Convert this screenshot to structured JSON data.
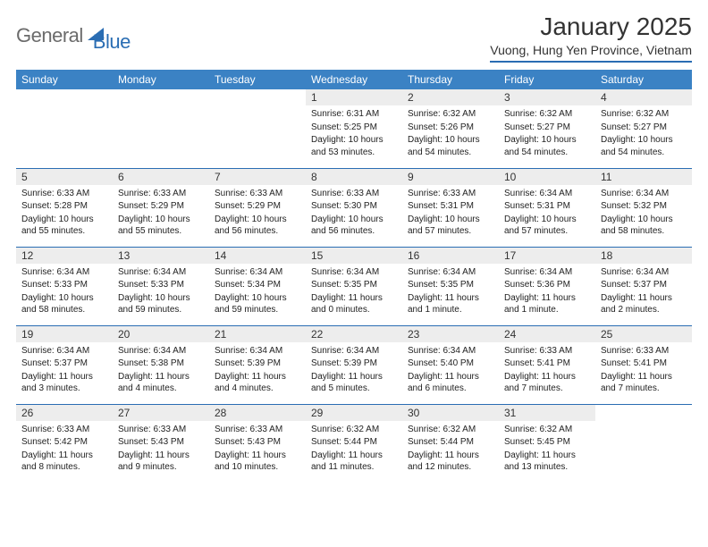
{
  "logo": {
    "part1": "General",
    "part2": "Blue"
  },
  "title": "January 2025",
  "location": "Vuong, Hung Yen Province, Vietnam",
  "colors": {
    "header_bg": "#3b82c4",
    "header_text": "#ffffff",
    "accent": "#2a6db3",
    "daynum_bg": "#ededed",
    "text": "#222222",
    "logo_gray": "#6b6b6b",
    "page_bg": "#ffffff"
  },
  "fonts": {
    "title_size": 28,
    "location_size": 14,
    "weekday_size": 12,
    "daynum_size": 12,
    "body_size": 10,
    "logo_size": 22
  },
  "weekdays": [
    "Sunday",
    "Monday",
    "Tuesday",
    "Wednesday",
    "Thursday",
    "Friday",
    "Saturday"
  ],
  "weeks": [
    [
      {
        "blank": true
      },
      {
        "blank": true
      },
      {
        "blank": true
      },
      {
        "n": "1",
        "sunrise": "6:31 AM",
        "sunset": "5:25 PM",
        "daylight": "10 hours and 53 minutes."
      },
      {
        "n": "2",
        "sunrise": "6:32 AM",
        "sunset": "5:26 PM",
        "daylight": "10 hours and 54 minutes."
      },
      {
        "n": "3",
        "sunrise": "6:32 AM",
        "sunset": "5:27 PM",
        "daylight": "10 hours and 54 minutes."
      },
      {
        "n": "4",
        "sunrise": "6:32 AM",
        "sunset": "5:27 PM",
        "daylight": "10 hours and 54 minutes."
      }
    ],
    [
      {
        "n": "5",
        "sunrise": "6:33 AM",
        "sunset": "5:28 PM",
        "daylight": "10 hours and 55 minutes."
      },
      {
        "n": "6",
        "sunrise": "6:33 AM",
        "sunset": "5:29 PM",
        "daylight": "10 hours and 55 minutes."
      },
      {
        "n": "7",
        "sunrise": "6:33 AM",
        "sunset": "5:29 PM",
        "daylight": "10 hours and 56 minutes."
      },
      {
        "n": "8",
        "sunrise": "6:33 AM",
        "sunset": "5:30 PM",
        "daylight": "10 hours and 56 minutes."
      },
      {
        "n": "9",
        "sunrise": "6:33 AM",
        "sunset": "5:31 PM",
        "daylight": "10 hours and 57 minutes."
      },
      {
        "n": "10",
        "sunrise": "6:34 AM",
        "sunset": "5:31 PM",
        "daylight": "10 hours and 57 minutes."
      },
      {
        "n": "11",
        "sunrise": "6:34 AM",
        "sunset": "5:32 PM",
        "daylight": "10 hours and 58 minutes."
      }
    ],
    [
      {
        "n": "12",
        "sunrise": "6:34 AM",
        "sunset": "5:33 PM",
        "daylight": "10 hours and 58 minutes."
      },
      {
        "n": "13",
        "sunrise": "6:34 AM",
        "sunset": "5:33 PM",
        "daylight": "10 hours and 59 minutes."
      },
      {
        "n": "14",
        "sunrise": "6:34 AM",
        "sunset": "5:34 PM",
        "daylight": "10 hours and 59 minutes."
      },
      {
        "n": "15",
        "sunrise": "6:34 AM",
        "sunset": "5:35 PM",
        "daylight": "11 hours and 0 minutes."
      },
      {
        "n": "16",
        "sunrise": "6:34 AM",
        "sunset": "5:35 PM",
        "daylight": "11 hours and 1 minute."
      },
      {
        "n": "17",
        "sunrise": "6:34 AM",
        "sunset": "5:36 PM",
        "daylight": "11 hours and 1 minute."
      },
      {
        "n": "18",
        "sunrise": "6:34 AM",
        "sunset": "5:37 PM",
        "daylight": "11 hours and 2 minutes."
      }
    ],
    [
      {
        "n": "19",
        "sunrise": "6:34 AM",
        "sunset": "5:37 PM",
        "daylight": "11 hours and 3 minutes."
      },
      {
        "n": "20",
        "sunrise": "6:34 AM",
        "sunset": "5:38 PM",
        "daylight": "11 hours and 4 minutes."
      },
      {
        "n": "21",
        "sunrise": "6:34 AM",
        "sunset": "5:39 PM",
        "daylight": "11 hours and 4 minutes."
      },
      {
        "n": "22",
        "sunrise": "6:34 AM",
        "sunset": "5:39 PM",
        "daylight": "11 hours and 5 minutes."
      },
      {
        "n": "23",
        "sunrise": "6:34 AM",
        "sunset": "5:40 PM",
        "daylight": "11 hours and 6 minutes."
      },
      {
        "n": "24",
        "sunrise": "6:33 AM",
        "sunset": "5:41 PM",
        "daylight": "11 hours and 7 minutes."
      },
      {
        "n": "25",
        "sunrise": "6:33 AM",
        "sunset": "5:41 PM",
        "daylight": "11 hours and 7 minutes."
      }
    ],
    [
      {
        "n": "26",
        "sunrise": "6:33 AM",
        "sunset": "5:42 PM",
        "daylight": "11 hours and 8 minutes."
      },
      {
        "n": "27",
        "sunrise": "6:33 AM",
        "sunset": "5:43 PM",
        "daylight": "11 hours and 9 minutes."
      },
      {
        "n": "28",
        "sunrise": "6:33 AM",
        "sunset": "5:43 PM",
        "daylight": "11 hours and 10 minutes."
      },
      {
        "n": "29",
        "sunrise": "6:32 AM",
        "sunset": "5:44 PM",
        "daylight": "11 hours and 11 minutes."
      },
      {
        "n": "30",
        "sunrise": "6:32 AM",
        "sunset": "5:44 PM",
        "daylight": "11 hours and 12 minutes."
      },
      {
        "n": "31",
        "sunrise": "6:32 AM",
        "sunset": "5:45 PM",
        "daylight": "11 hours and 13 minutes."
      },
      {
        "blank": true
      }
    ]
  ],
  "labels": {
    "sunrise_prefix": "Sunrise: ",
    "sunset_prefix": "Sunset: ",
    "daylight_prefix": "Daylight: "
  }
}
